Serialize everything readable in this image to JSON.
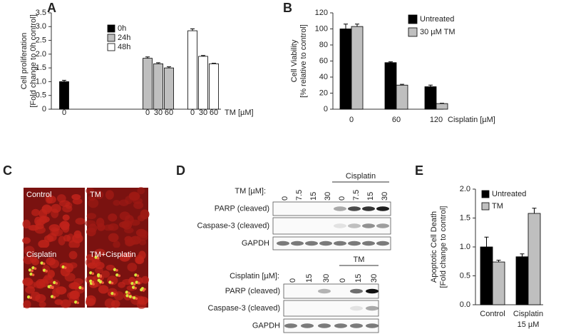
{
  "chart_data": [
    {
      "type": "bar",
      "panel": "A",
      "ylabel": [
        "Cell proliferation",
        "[Fold change to 0h control]"
      ],
      "xlabel": "TM [µM]",
      "categories": [
        "0",
        "0",
        "30",
        "60",
        "0",
        "30",
        "60"
      ],
      "series": [
        {
          "name": "0h",
          "color": "#000000",
          "values": [
            1.0,
            null,
            null,
            null,
            null,
            null,
            null
          ],
          "errors": [
            0.05,
            null,
            null,
            null,
            null,
            null,
            null
          ]
        },
        {
          "name": "24h",
          "color": "#bfbfbf",
          "values": [
            null,
            1.85,
            1.65,
            1.5,
            null,
            null,
            null
          ],
          "errors": [
            null,
            0.05,
            0.04,
            0.04,
            null,
            null,
            null
          ]
        },
        {
          "name": "48h",
          "color": "#ffffff",
          "values": [
            null,
            null,
            null,
            null,
            2.85,
            1.92,
            1.65
          ],
          "errors": [
            null,
            null,
            null,
            null,
            0.07,
            0.03,
            0.02
          ]
        }
      ],
      "ylim": [
        0,
        3.5
      ],
      "yticks": [
        0,
        0.5,
        {
          "value": 1,
          "label": "1.0"
        },
        1.5,
        {
          "value": 2,
          "label": "2.0"
        },
        2.5,
        {
          "value": 3,
          "label": "3.0"
        },
        3.5
      ],
      "legend": "upper left"
    },
    {
      "type": "bar",
      "panel": "B",
      "ylabel": [
        "Cell Viability",
        "[% relative to control]"
      ],
      "xlabel": "Cisplatin [µM]",
      "categories": [
        "0",
        "60",
        "120"
      ],
      "series": [
        {
          "name": "Untreated",
          "color": "#000000",
          "values": [
            100,
            58,
            28
          ],
          "errors": [
            6,
            1,
            2
          ]
        },
        {
          "name": "30 µM TM",
          "color": "#bfbfbf",
          "values": [
            103,
            30,
            7
          ],
          "errors": [
            3,
            1,
            0.5
          ]
        }
      ],
      "ylim": [
        0,
        120
      ],
      "yticks": [
        0,
        20,
        40,
        60,
        80,
        100,
        120
      ],
      "legend": "upper right"
    },
    {
      "type": "bar",
      "panel": "E",
      "ylabel": [
        "Apoptotic Cell Death",
        "[Fold change to control]"
      ],
      "categories": [
        [
          "Control"
        ],
        [
          "Cisplatin",
          "15 µM"
        ]
      ],
      "series": [
        {
          "name": "Untreated",
          "color": "#000000",
          "values": [
            1.0,
            0.83
          ],
          "errors": [
            0.17,
            0.05
          ]
        },
        {
          "name": "TM",
          "color": "#bfbfbf",
          "values": [
            0.74,
            1.58
          ],
          "errors": [
            0.03,
            0.09
          ]
        }
      ],
      "ylim": [
        0,
        2
      ],
      "yticks": [
        {
          "value": 0,
          "label": "0.0"
        },
        0.5,
        {
          "value": 1,
          "label": "1.0"
        },
        1.5,
        {
          "value": 2,
          "label": "2.0"
        }
      ],
      "legend": "upper left"
    }
  ],
  "microscopy": {
    "panel": "C",
    "images": [
      "Control",
      "TM",
      "Cisplatin",
      "TM+Cisplatin"
    ]
  },
  "western_blots": {
    "panel": "D",
    "blots": [
      {
        "condition_label": "TM [µM]:",
        "lanes": [
          "0",
          "7.5",
          "15",
          "30",
          "0",
          "7.5",
          "15",
          "30"
        ],
        "group_label": "Cisplatin",
        "rows": [
          "PARP (cleaved)",
          "Caspase-3 (cleaved)",
          "GAPDH"
        ]
      },
      {
        "condition_label": "Cisplatin [µM]:",
        "lanes": [
          "0",
          "15",
          "30",
          "0",
          "15",
          "30"
        ],
        "group_label": "TM",
        "rows": [
          "PARP (cleaved)",
          "Caspase-3 (cleaved)",
          "GAPDH"
        ]
      }
    ]
  }
}
